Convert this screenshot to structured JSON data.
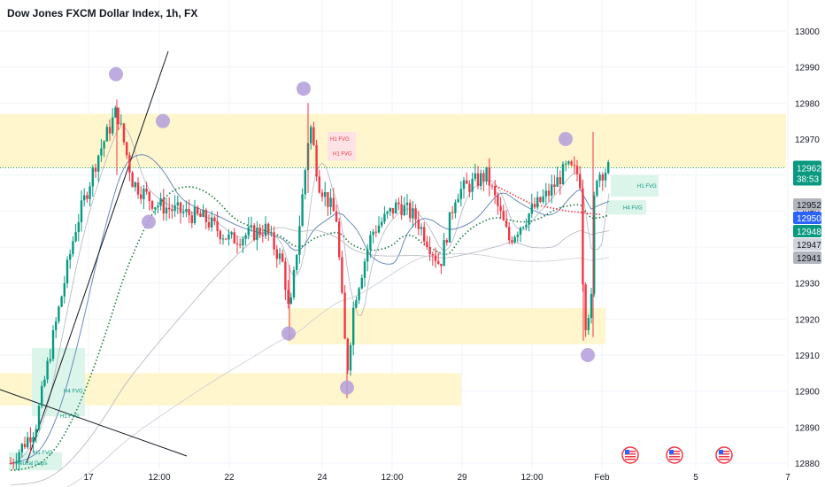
{
  "header": {
    "title": "Dow Jones FXCM Dollar Index, 1h, FX"
  },
  "colors": {
    "up": "#089981",
    "down": "#f23645",
    "zone": "#fff5c4",
    "fvg_red": "#fde3e5",
    "fvg_green": "#dcf5ea",
    "marker": "#b39ddb",
    "grid": "#f0f3fa",
    "dotted_ma": "#1b7a3c"
  },
  "chart_data": {
    "type": "candlestick",
    "title": "Dow Jones FXCM Dollar Index, 1h, FX",
    "ylim": [
      12878,
      13006
    ],
    "y_ticks": [
      13000,
      12990,
      12980,
      12970,
      12960,
      12950,
      12940,
      12930,
      12920,
      12910,
      12900,
      12890,
      12880
    ],
    "x_ticks": [
      "17",
      "12:00",
      "22",
      "24",
      "12:00",
      "29",
      "12:00",
      "Feb",
      "5",
      "7"
    ],
    "current_price": "12962",
    "countdown": "38:53",
    "price_tags": [
      {
        "value": "12952",
        "color": "#b2b5be",
        "text_color": "#131722"
      },
      {
        "value": "12950",
        "color": "#2962ff",
        "text_color": "#ffffff"
      },
      {
        "value": "12948",
        "color": "#089981",
        "text_color": "#ffffff"
      },
      {
        "value": "12947",
        "color": "#d1d4dc",
        "text_color": "#131722"
      },
      {
        "value": "12941",
        "color": "#b2b5be",
        "text_color": "#131722"
      }
    ],
    "zones": [
      {
        "label": "",
        "low": 12962,
        "high": 12977,
        "color": "#fff5c4"
      },
      {
        "label": "",
        "low": 12913,
        "high": 12923,
        "color": "#fff5c4"
      },
      {
        "label": "",
        "low": 12896,
        "high": 12905,
        "color": "#fff5c4"
      }
    ],
    "fvg_labels": [
      {
        "text": "H1 FVG",
        "value": 12970,
        "color": "#f23645"
      },
      {
        "text": "H1 FVG",
        "value": 12966,
        "color": "#f23645"
      },
      {
        "text": "H1 FVG",
        "value": 12957,
        "color": "#089981"
      },
      {
        "text": "H4 FVG",
        "value": 12951,
        "color": "#089981"
      },
      {
        "text": "H4 FVG",
        "value": 12900,
        "color": "#089981"
      },
      {
        "text": "H1 FVG",
        "value": 12893,
        "color": "#089981"
      },
      {
        "text": "H1 FVG",
        "value": 12883,
        "color": "#089981"
      },
      {
        "text": "Neutral Gaps",
        "value": 12880,
        "color": "#089981"
      }
    ],
    "markers": [
      {
        "label": "swing-high",
        "value": 12988
      },
      {
        "label": "swing-high",
        "value": 12975
      },
      {
        "label": "swing-low",
        "value": 12947
      },
      {
        "label": "swing-high",
        "value": 12984
      },
      {
        "label": "swing-low",
        "value": 12916
      },
      {
        "label": "swing-low",
        "value": 12901
      },
      {
        "label": "swing-high",
        "value": 12970
      },
      {
        "label": "swing-low",
        "value": 12910
      }
    ],
    "grid": true
  }
}
